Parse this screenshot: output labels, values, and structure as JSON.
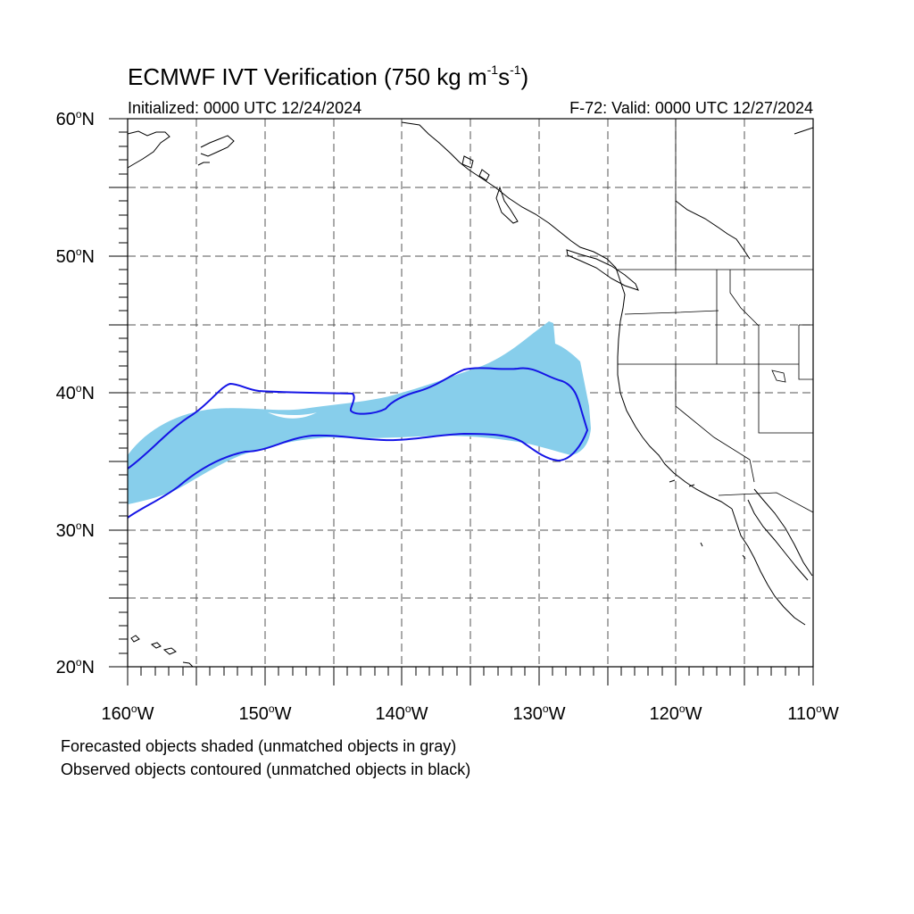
{
  "title": {
    "main": "ECMWF IVT Verification (750 kg m",
    "exp1": "-1",
    "mid": "s",
    "exp2": "-1",
    "end": ")"
  },
  "subtitle_left": "Initialized: 0000 UTC 12/24/2024",
  "subtitle_right": "F-72: Valid: 0000 UTC 12/27/2024",
  "lat_labels": [
    {
      "deg": "60",
      "hemi": "N"
    },
    {
      "deg": "50",
      "hemi": "N"
    },
    {
      "deg": "40",
      "hemi": "N"
    },
    {
      "deg": "30",
      "hemi": "N"
    },
    {
      "deg": "20",
      "hemi": "N"
    }
  ],
  "lon_labels": [
    {
      "deg": "160",
      "hemi": "W"
    },
    {
      "deg": "150",
      "hemi": "W"
    },
    {
      "deg": "140",
      "hemi": "W"
    },
    {
      "deg": "130",
      "hemi": "W"
    },
    {
      "deg": "120",
      "hemi": "W"
    },
    {
      "deg": "110",
      "hemi": "W"
    }
  ],
  "notes": {
    "forecast": "Forecasted objects shaded (unmatched objects in gray)",
    "observed": "Observed objects contoured (unmatched objects in black)"
  },
  "colors": {
    "forecast_fill": "#87ceeb",
    "observed_contour": "#1515e6",
    "coastline": "#000000",
    "grid": "#555555"
  }
}
